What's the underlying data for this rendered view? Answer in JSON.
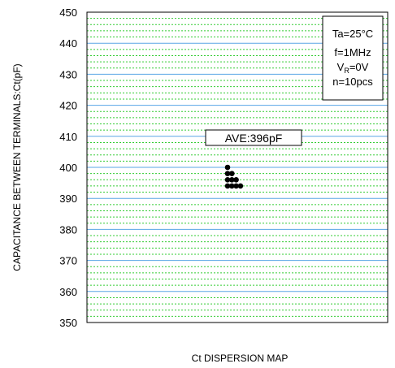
{
  "chart_data": {
    "type": "scatter",
    "title": "",
    "xlabel": "Ct DISPERSION MAP",
    "ylabel": "CAPACITANCE BETWEEN TERMINALS:Ct(pF)",
    "ylim": [
      350,
      450
    ],
    "y_ticks": [
      "350",
      "360",
      "370",
      "380",
      "390",
      "400",
      "410",
      "420",
      "430",
      "440",
      "450"
    ],
    "grid": true,
    "conditions": {
      "ta": "Ta=25°C",
      "f": "f=1MHz",
      "vr_main": "V",
      "vr_sub": "R",
      "vr_rest": "=0V",
      "n": "n=10pcs"
    },
    "annotation": "AVE:396pF",
    "points": [
      {
        "col": 0,
        "y": 400
      },
      {
        "col": 0,
        "y": 398
      },
      {
        "col": 1,
        "y": 398
      },
      {
        "col": 0,
        "y": 396
      },
      {
        "col": 1,
        "y": 396
      },
      {
        "col": 2,
        "y": 396
      },
      {
        "col": 0,
        "y": 394
      },
      {
        "col": 1,
        "y": 394
      },
      {
        "col": 2,
        "y": 394
      },
      {
        "col": 3,
        "y": 394
      }
    ],
    "colors": {
      "major_grid": "#5aa6e6",
      "minor_grid": "#33cc33",
      "frame": "#000000",
      "points": "#000000"
    }
  }
}
